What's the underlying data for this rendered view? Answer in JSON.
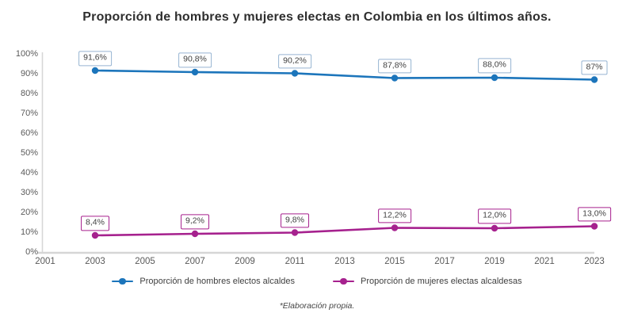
{
  "title": "Proporción de hombres y mujeres electas en Colombia en los últimos años.",
  "footnote": "*Elaboración propia.",
  "colors": {
    "background": "#ffffff",
    "title_text": "#2e2e2e",
    "axis_line": "#d6d6d6",
    "tick_text": "#5a5a5a",
    "label_text": "#3f3f3f",
    "men_line": "#1c75bb",
    "men_label_border": "#96b4d2",
    "women_line": "#a6218e",
    "women_label_border": "#a6218e"
  },
  "chart_data": {
    "type": "line",
    "x": [
      2003,
      2007,
      2011,
      2015,
      2019,
      2023
    ],
    "x_axis_ticks": [
      "2001",
      "2003",
      "2005",
      "2007",
      "2009",
      "2011",
      "2013",
      "2015",
      "2017",
      "2019",
      "2021",
      "2023"
    ],
    "y_axis_ticks": [
      "0%",
      "10%",
      "20%",
      "30%",
      "40%",
      "50%",
      "60%",
      "70%",
      "80%",
      "90%",
      "100%"
    ],
    "ylim": [
      0,
      100
    ],
    "grid": false,
    "legend_position": "bottom",
    "series": [
      {
        "name": "Proporción de hombres electos alcaldes",
        "color": "#1c75bb",
        "label_border": "#96b4d2",
        "values": [
          91.6,
          90.8,
          90.2,
          87.8,
          88.0,
          87
        ],
        "point_labels": [
          "91,6%",
          "90,8%",
          "90,2%",
          "87,8%",
          "88,0%",
          "87%"
        ]
      },
      {
        "name": "Proporción de mujeres  electas alcaldesas",
        "color": "#a6218e",
        "label_border": "#a6218e",
        "values": [
          8.4,
          9.2,
          9.8,
          12.2,
          12.0,
          13.0
        ],
        "point_labels": [
          "8,4%",
          "9,2%",
          "9,8%",
          "12,2%",
          "12,0%",
          "13,0%"
        ]
      }
    ]
  }
}
